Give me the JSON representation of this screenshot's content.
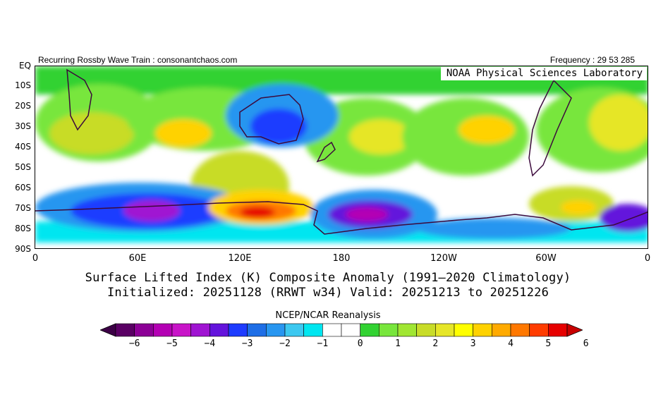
{
  "header": {
    "left_text": "Recurring Rossby Wave Train : consonantchaos.com",
    "right_text": "Frequency : 29 53 285"
  },
  "map": {
    "credit": "NOAA Physical Sciences Laboratory",
    "y_labels": [
      "EQ",
      "10S",
      "20S",
      "30S",
      "40S",
      "50S",
      "60S",
      "70S",
      "80S",
      "90S"
    ],
    "x_labels": [
      "0",
      "60E",
      "120E",
      "180",
      "120W",
      "60W",
      "0"
    ]
  },
  "titles": {
    "line1": "Surface Lifted Index (K) Composite Anomaly (1991–2020 Climatology)",
    "line2": "Initialized: 20251128 (RRWT w34) Valid: 20251213 to 20251226"
  },
  "colorbar": {
    "title": "NCEP/NCAR Reanalysis",
    "tick_labels": [
      "−6",
      "−5",
      "−4",
      "−3",
      "−2",
      "−1",
      "0",
      "1",
      "2",
      "3",
      "4",
      "5",
      "6"
    ],
    "colors": [
      "#5a0064",
      "#8c0096",
      "#b400b4",
      "#c814c8",
      "#a014d2",
      "#6414dc",
      "#1e3cff",
      "#1e6ee6",
      "#2896f0",
      "#3cc8f0",
      "#00e6f0",
      "#ffffff",
      "#ffffff",
      "#32d232",
      "#78e63c",
      "#a0e632",
      "#c8dc28",
      "#e6e628",
      "#ffff00",
      "#ffd200",
      "#ffaa00",
      "#ff7800",
      "#ff3c00",
      "#e60000"
    ],
    "under_color": "#3c0046",
    "over_color": "#c80000"
  }
}
